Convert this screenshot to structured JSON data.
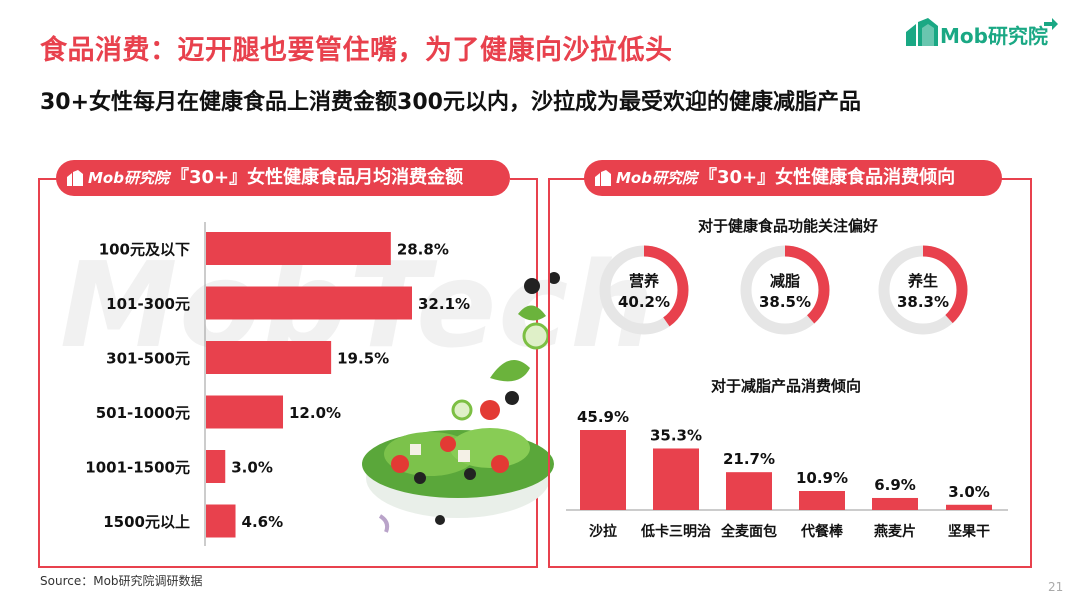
{
  "title": "食品消费：迈开腿也要管住嘴，为了健康向沙拉低头",
  "subtitle": "30+女性每月在健康食品上消费金额300元以内，沙拉成为最受欢迎的健康减脂产品",
  "brand_logo_text": "Mob研究院",
  "source": "Source：Mob研究院调研数据",
  "page_number": "21",
  "colors": {
    "accent": "#e8414d",
    "ring_track": "#e6e6e6",
    "brand_green": "#1aa884"
  },
  "left_panel": {
    "brand": "Mob研究院",
    "header": "『30+』女性健康食品月均消费金额"
  },
  "right_panel": {
    "brand": "Mob研究院",
    "header": "『30+』女性健康食品消费倾向"
  },
  "chart_data": [
    {
      "type": "bar",
      "orientation": "horizontal",
      "categories": [
        "100元及以下",
        "101-300元",
        "301-500元",
        "501-1000元",
        "1001-1500元",
        "1500元以上"
      ],
      "values": [
        28.8,
        32.1,
        19.5,
        12.0,
        3.0,
        4.6
      ],
      "labels": [
        "28.8%",
        "32.1%",
        "19.5%",
        "12.0%",
        "3.0%",
        "4.6%"
      ],
      "unit": "%"
    },
    {
      "type": "pie",
      "style": "ring-gauges",
      "title": "对于健康食品功能关注偏好",
      "categories": [
        "营养",
        "减脂",
        "养生"
      ],
      "values": [
        40.2,
        38.5,
        38.3
      ],
      "labels": [
        "40.2%",
        "38.5%",
        "38.3%"
      ],
      "unit": "%"
    },
    {
      "type": "bar",
      "orientation": "vertical",
      "title": "对于减脂产品消费倾向",
      "categories": [
        "沙拉",
        "低卡三明治",
        "全麦面包",
        "代餐棒",
        "燕麦片",
        "坚果干"
      ],
      "values": [
        45.9,
        35.3,
        21.7,
        10.9,
        6.9,
        3.0
      ],
      "labels": [
        "45.9%",
        "35.3%",
        "21.7%",
        "10.9%",
        "6.9%",
        "3.0%"
      ],
      "unit": "%"
    }
  ]
}
